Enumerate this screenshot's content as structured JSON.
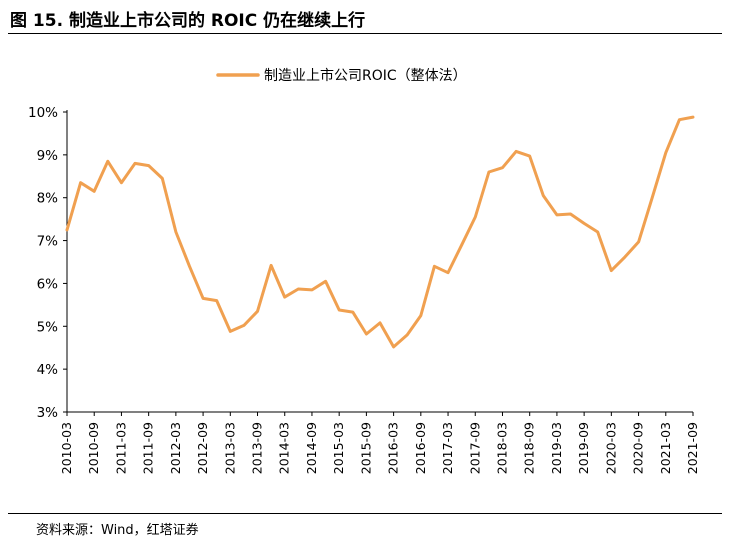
{
  "figure": {
    "title": "图 15. 制造业上市公司的 ROIC 仍在继续上行",
    "source": "资料来源：Wind，红塔证券"
  },
  "colors": {
    "series": "#f0a050"
  },
  "chart_data": {
    "type": "line",
    "legend": "top-center",
    "grid": false,
    "ylim": [
      3,
      10
    ],
    "yticks": [
      "3%",
      "4%",
      "5%",
      "6%",
      "7%",
      "8%",
      "9%",
      "10%"
    ],
    "xticks": [
      "2010-03",
      "2010-09",
      "2011-03",
      "2011-09",
      "2012-03",
      "2012-09",
      "2013-03",
      "2013-09",
      "2014-03",
      "2014-09",
      "2015-03",
      "2015-09",
      "2016-03",
      "2016-09",
      "2017-03",
      "2017-09",
      "2018-03",
      "2018-09",
      "2019-03",
      "2019-09",
      "2020-03",
      "2020-09",
      "2021-03",
      "2021-09"
    ],
    "series": [
      {
        "name": "制造业上市公司ROIC（整体法）",
        "x": [
          "2010-03",
          "2010-06",
          "2010-09",
          "2010-12",
          "2011-03",
          "2011-06",
          "2011-09",
          "2011-12",
          "2012-03",
          "2012-06",
          "2012-09",
          "2012-12",
          "2013-03",
          "2013-06",
          "2013-09",
          "2013-12",
          "2014-03",
          "2014-06",
          "2014-09",
          "2014-12",
          "2015-03",
          "2015-06",
          "2015-09",
          "2015-12",
          "2016-03",
          "2016-06",
          "2016-09",
          "2016-12",
          "2017-03",
          "2017-06",
          "2017-09",
          "2017-12",
          "2018-03",
          "2018-06",
          "2018-09",
          "2018-12",
          "2019-03",
          "2019-06",
          "2019-09",
          "2019-12",
          "2020-03",
          "2020-06",
          "2020-09",
          "2020-12",
          "2021-03",
          "2021-06",
          "2021-09"
        ],
        "values": [
          7.25,
          8.35,
          8.15,
          8.85,
          8.35,
          8.8,
          8.75,
          8.45,
          7.2,
          6.4,
          5.65,
          5.6,
          4.88,
          5.02,
          5.35,
          6.42,
          5.68,
          5.87,
          5.85,
          6.05,
          5.38,
          5.33,
          4.82,
          5.08,
          4.52,
          4.8,
          5.25,
          6.4,
          6.25,
          6.9,
          7.55,
          8.6,
          8.7,
          9.08,
          8.97,
          8.05,
          7.6,
          7.62,
          7.4,
          7.2,
          6.3,
          6.62,
          6.97,
          8.0,
          9.05,
          9.82,
          9.88
        ]
      }
    ]
  }
}
